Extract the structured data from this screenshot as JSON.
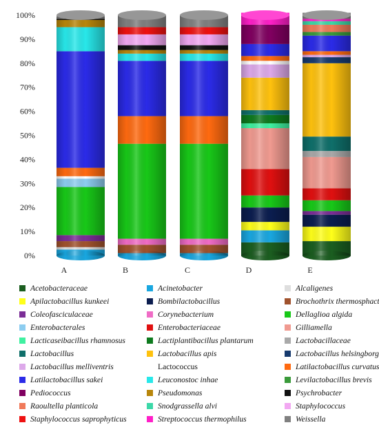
{
  "chart_data": {
    "type": "bar",
    "stacked": true,
    "normalized": true,
    "y_ticks": [
      "0%",
      "10%",
      "20%",
      "30%",
      "40%",
      "50%",
      "60%",
      "70%",
      "80%",
      "90%",
      "100%"
    ],
    "ylim": [
      0,
      100
    ],
    "grid": false,
    "legend_position": "bottom",
    "categories": [
      "A",
      "B",
      "C",
      "D",
      "E"
    ],
    "series": [
      {
        "name": "Acetobacteraceae",
        "color": "#1b5e20",
        "italic": true,
        "values": [
          0,
          0,
          0,
          5.5,
          6
        ]
      },
      {
        "name": "Acinetobacter",
        "color": "#19a7e0",
        "italic": true,
        "values": [
          2.5,
          1,
          1,
          5,
          0
        ]
      },
      {
        "name": "Alcaligenes",
        "color": "#dedede",
        "italic": true,
        "values": [
          1,
          0,
          0,
          0,
          0
        ]
      },
      {
        "name": "Apilactobacillus kunkeei",
        "color": "#ffff1a",
        "italic": true,
        "values": [
          0,
          0,
          0,
          3.5,
          6
        ]
      },
      {
        "name": "Bombilactobacillus",
        "color": "#0b1d4f",
        "italic": true,
        "values": [
          0,
          0,
          0,
          6,
          5
        ]
      },
      {
        "name": "Brochothrix thermosphacta",
        "color": "#a0522d",
        "italic": true,
        "values": [
          2.5,
          3.5,
          3.5,
          0,
          0
        ]
      },
      {
        "name": "Coleofasciculaceae",
        "color": "#7b2d96",
        "italic": true,
        "values": [
          2.5,
          0,
          0,
          0,
          1.5
        ]
      },
      {
        "name": "Corynebacterium",
        "color": "#f06cc6",
        "italic": true,
        "values": [
          0,
          2.5,
          2.5,
          0,
          0
        ]
      },
      {
        "name": "Dellaglioa algida",
        "color": "#18c818",
        "italic": true,
        "values": [
          20,
          39.5,
          39.5,
          5,
          4.5
        ]
      },
      {
        "name": "Enterobacterales",
        "color": "#8dcdf0",
        "italic": true,
        "values": [
          3.5,
          0,
          0,
          0,
          0
        ]
      },
      {
        "name": "Enterobacteriaceae",
        "color": "#e01010",
        "italic": true,
        "values": [
          0,
          0,
          0,
          11,
          5
        ]
      },
      {
        "name": "Gilliamella",
        "color": "#f09a90",
        "italic": true,
        "values": [
          0,
          0,
          0,
          17,
          13
        ]
      },
      {
        "name": "Lacticaseibacillus rhamnosus",
        "color": "#3ff0a0",
        "italic": true,
        "values": [
          0,
          0,
          0,
          2,
          0
        ]
      },
      {
        "name": "Lactiplantibacillus plantarum",
        "color": "#0e7a1e",
        "italic": true,
        "values": [
          0,
          0,
          0,
          3.5,
          0
        ]
      },
      {
        "name": "Lactobacillaceae",
        "color": "#a9a9a9",
        "italic": true,
        "values": [
          0,
          0,
          0,
          0,
          2.5
        ]
      },
      {
        "name": "Lactobacillus",
        "color": "#0f6f6a",
        "italic": true,
        "values": [
          0,
          0,
          0,
          2,
          6
        ]
      },
      {
        "name": "Lactobacillus apis",
        "color": "#ffc20e",
        "italic": true,
        "values": [
          0,
          0,
          0,
          13.5,
          30.5
        ]
      },
      {
        "name": "Lactobacillus helsingborgensis",
        "color": "#173a6e",
        "italic": true,
        "values": [
          0,
          0,
          0,
          0,
          2.5
        ]
      },
      {
        "name": "Lactobacillus melliventris",
        "color": "#dda9ea",
        "italic": true,
        "values": [
          0,
          0,
          0,
          5.5,
          1
        ]
      },
      {
        "name": "Lactococcus",
        "color": "#ffffff",
        "italic": false,
        "values": [
          1,
          0,
          0,
          1.5,
          0
        ]
      },
      {
        "name": "Latilactobacillus curvatus",
        "color": "#ff6a10",
        "italic": true,
        "values": [
          3.5,
          11.5,
          11.5,
          2,
          1.5
        ]
      },
      {
        "name": "Latilactobacillus sakei",
        "color": "#2b2be8",
        "italic": true,
        "values": [
          48.5,
          23,
          23,
          5,
          6.5
        ]
      },
      {
        "name": "Leuconostoc inhae",
        "color": "#28e8ea",
        "italic": true,
        "values": [
          10,
          3,
          3,
          0,
          0
        ]
      },
      {
        "name": "Levilactobacillus brevis",
        "color": "#3a9a3a",
        "italic": true,
        "values": [
          0,
          0,
          0,
          0,
          1.5
        ]
      },
      {
        "name": "Pediococcus",
        "color": "#800060",
        "italic": true,
        "values": [
          0,
          0,
          0,
          8,
          0
        ]
      },
      {
        "name": "Pseudomonas",
        "color": "#b8860b",
        "italic": true,
        "values": [
          3,
          1.5,
          1.5,
          0,
          0
        ]
      },
      {
        "name": "Psychrobacter",
        "color": "#111111",
        "italic": true,
        "values": [
          0.5,
          2,
          2,
          0,
          0
        ]
      },
      {
        "name": "Raoultella planticola",
        "color": "#f07a5a",
        "italic": true,
        "values": [
          0,
          0,
          0,
          0,
          3
        ]
      },
      {
        "name": "Snodgrassella alvi",
        "color": "#3cd8a8",
        "italic": true,
        "values": [
          0,
          0,
          0,
          0,
          1.5
        ]
      },
      {
        "name": "Staphylococcus",
        "color": "#f2a8f2",
        "italic": true,
        "values": [
          0,
          4.5,
          4.5,
          0,
          0
        ]
      },
      {
        "name": "Staphylococcus saprophyticus",
        "color": "#ee1111",
        "italic": true,
        "values": [
          0,
          3,
          3,
          0,
          0
        ]
      },
      {
        "name": "Streptococcus thermophilus",
        "color": "#ff1fc8",
        "italic": true,
        "values": [
          0,
          0,
          0,
          5,
          1
        ]
      },
      {
        "name": "Weissella",
        "color": "#808080",
        "italic": true,
        "values": [
          1,
          5,
          5,
          0,
          2.5
        ]
      }
    ]
  }
}
